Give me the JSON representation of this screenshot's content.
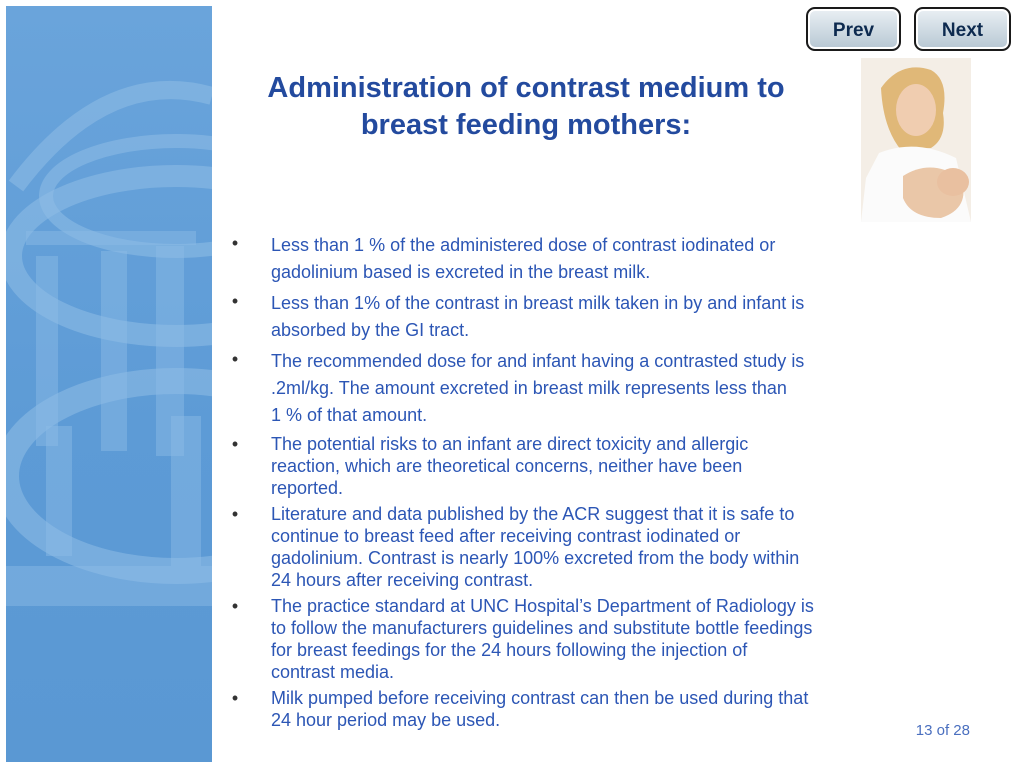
{
  "nav": {
    "prev_label": "Prev",
    "next_label": "Next"
  },
  "slide": {
    "title_line1": "Administration of contrast medium to",
    "title_line2": "breast feeding mothers:",
    "bullets": [
      "Less than 1 % of the administered dose of contrast iodinated or\ngadolinium based is excreted in the breast milk.",
      "Less than 1% of the contrast in breast milk taken in by and infant is\nabsorbed by the GI tract.",
      "The recommended dose for and infant having a contrasted study is\n.2ml/kg.  The amount excreted in breast milk represents less than\n 1 % of that amount.",
      "The potential risks to an infant are direct toxicity and allergic\nreaction, which are theoretical concerns, neither have been\nreported.",
      "Literature and data published by the ACR suggest that it is safe to\ncontinue to breast feed after receiving contrast iodinated or\ngadolinium. Contrast is nearly 100% excreted from the body within\n24 hours after receiving contrast.",
      "The practice standard at UNC Hospital’s Department of Radiology is\nto follow the manufacturers guidelines and substitute bottle feedings\nfor breast feedings for the 24 hours following the injection of\ncontrast media.",
      "Milk pumped before receiving contrast can then be used during that\n24 hour period may be used."
    ],
    "bullet_char": "•",
    "page_indicator": "13 of 28"
  },
  "colors": {
    "title": "#234a9e",
    "body_text": "#2c56b5",
    "side_panel": "#5b9bd5",
    "button_border": "#1a1a1a"
  },
  "icons": {
    "side_panel_graphic": "old-well-rotunda-watermark",
    "photo": "mother-nursing-infant-photo"
  }
}
